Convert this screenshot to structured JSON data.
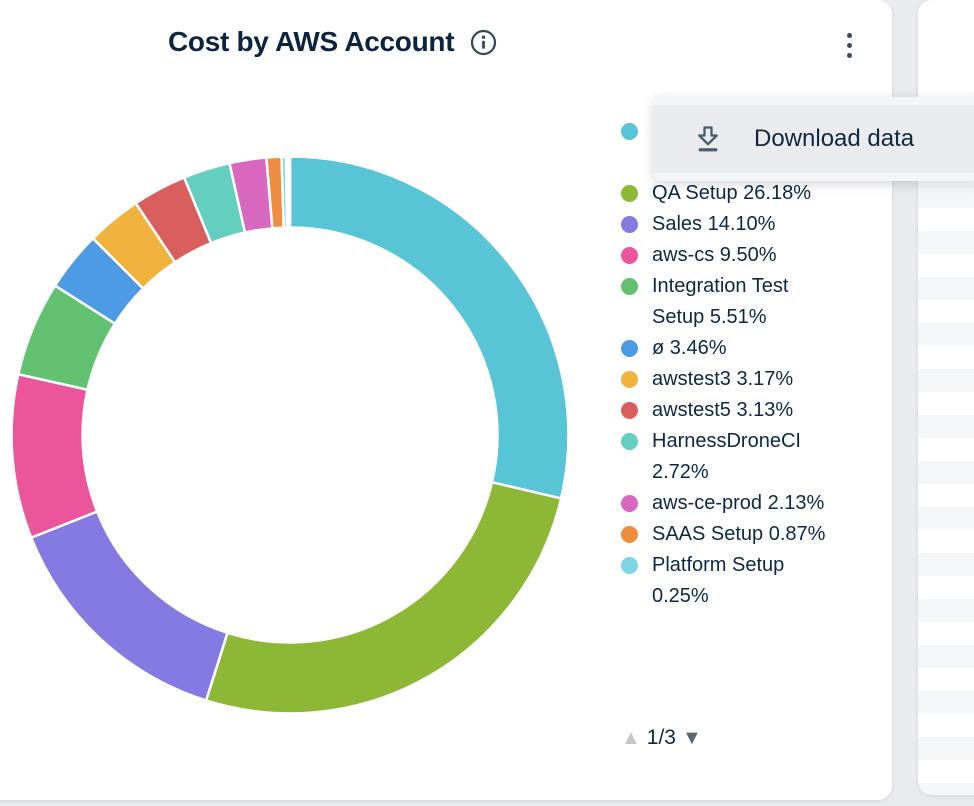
{
  "window": {
    "background": "#e9ebee"
  },
  "card": {
    "title": "Cost by AWS Account"
  },
  "menu": {
    "items": [
      {
        "icon": "download-icon",
        "label": "Download data"
      }
    ]
  },
  "legend": {
    "items": [
      {
        "text": "",
        "color": "#57c5d5"
      },
      {
        "text": "QA Setup 26.18%",
        "color": "#8cb836"
      },
      {
        "text": "Sales 14.10%",
        "color": "#8579e2"
      },
      {
        "text": "aws-cs 9.50%",
        "color": "#eb559c"
      },
      {
        "text": "Integration Test Setup 5.51%",
        "color": "#63c272"
      },
      {
        "text": "ø 3.46%",
        "color": "#4d9be5"
      },
      {
        "text": "awstest3 3.17%",
        "color": "#f2b23e"
      },
      {
        "text": "awstest5 3.13%",
        "color": "#d95f5f"
      },
      {
        "text": "HarnessDroneCI 2.72%",
        "color": "#64cec0"
      },
      {
        "text": "aws-ce-prod 2.13%",
        "color": "#d868c0"
      },
      {
        "text": "SAAS Setup 0.87%",
        "color": "#ef8e43"
      },
      {
        "text": "Platform Setup 0.25%",
        "color": "#7fd6e3"
      },
      {
        "text": "",
        "color": "#a8d470",
        "clipped": true
      }
    ],
    "pagination": {
      "page_label": "1/3",
      "up_glyph": "▲",
      "down_glyph": "▼"
    }
  },
  "chart_data": {
    "type": "pie",
    "subtype": "donut",
    "title": "Cost by AWS Account",
    "legend_position": "right",
    "inner_radius_ratio": 0.745,
    "start_angle_deg": 0,
    "direction": "clockwise",
    "series": [
      {
        "name": "",
        "percent": 28.62,
        "color": "#57c5d5"
      },
      {
        "name": "QA Setup",
        "percent": 26.18,
        "color": "#8cb836"
      },
      {
        "name": "Sales",
        "percent": 14.1,
        "color": "#8579e2"
      },
      {
        "name": "aws-cs",
        "percent": 9.5,
        "color": "#eb559c"
      },
      {
        "name": "Integration Test Setup",
        "percent": 5.51,
        "color": "#63c272"
      },
      {
        "name": "ø",
        "percent": 3.46,
        "color": "#4d9be5"
      },
      {
        "name": "awstest3",
        "percent": 3.17,
        "color": "#f2b23e"
      },
      {
        "name": "awstest5",
        "percent": 3.13,
        "color": "#d95f5f"
      },
      {
        "name": "HarnessDroneCI",
        "percent": 2.72,
        "color": "#64cec0"
      },
      {
        "name": "aws-ce-prod",
        "percent": 2.13,
        "color": "#d868c0"
      },
      {
        "name": "SAAS Setup",
        "percent": 0.87,
        "color": "#ef8e43"
      },
      {
        "name": "Platform Setup",
        "percent": 0.25,
        "color": "#7fd6e3"
      },
      {
        "name": "",
        "percent": 0.13,
        "color": "#a8d470"
      },
      {
        "name": "",
        "percent": 0.1,
        "color": "#9fd8e8"
      }
    ]
  }
}
